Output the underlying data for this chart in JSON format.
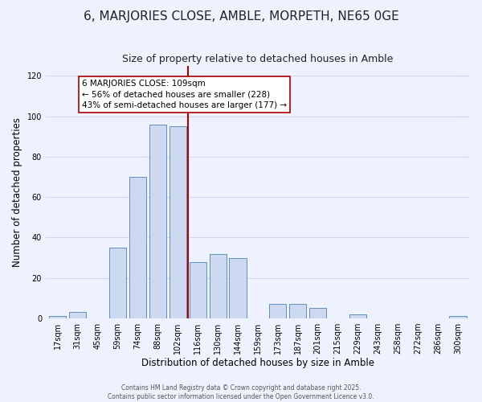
{
  "title": "6, MARJORIES CLOSE, AMBLE, MORPETH, NE65 0GE",
  "subtitle": "Size of property relative to detached houses in Amble",
  "xlabel": "Distribution of detached houses by size in Amble",
  "ylabel": "Number of detached properties",
  "bar_labels": [
    "17sqm",
    "31sqm",
    "45sqm",
    "59sqm",
    "74sqm",
    "88sqm",
    "102sqm",
    "116sqm",
    "130sqm",
    "144sqm",
    "159sqm",
    "173sqm",
    "187sqm",
    "201sqm",
    "215sqm",
    "229sqm",
    "243sqm",
    "258sqm",
    "272sqm",
    "286sqm",
    "300sqm"
  ],
  "bar_values": [
    1,
    3,
    0,
    35,
    70,
    96,
    95,
    28,
    32,
    30,
    0,
    7,
    7,
    5,
    0,
    2,
    0,
    0,
    0,
    0,
    1
  ],
  "bar_color": "#ccd9f0",
  "bar_edge_color": "#6090c0",
  "vline_x_idx": 6.5,
  "vline_color": "#aa0000",
  "annotation_text": "6 MARJORIES CLOSE: 109sqm\n← 56% of detached houses are smaller (228)\n43% of semi-detached houses are larger (177) →",
  "annotation_box_facecolor": "#ffffff",
  "annotation_box_edgecolor": "#aa0000",
  "ylim": [
    0,
    125
  ],
  "yticks": [
    0,
    20,
    40,
    60,
    80,
    100,
    120
  ],
  "footer_line1": "Contains HM Land Registry data © Crown copyright and database right 2025.",
  "footer_line2": "Contains public sector information licensed under the Open Government Licence v3.0.",
  "bg_color": "#eef2ff",
  "grid_color": "#d0d8f0",
  "title_fontsize": 11,
  "subtitle_fontsize": 9,
  "tick_fontsize": 7,
  "ylabel_fontsize": 8.5,
  "xlabel_fontsize": 8.5,
  "annotation_fontsize": 7.5,
  "footer_fontsize": 5.5
}
